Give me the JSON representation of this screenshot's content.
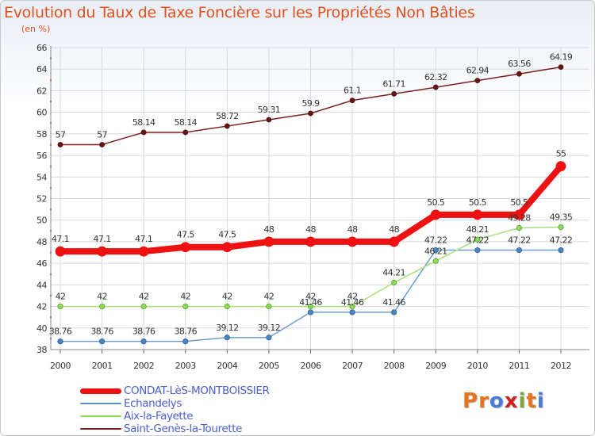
{
  "title": "Evolution du Taux de Taxe Foncière sur les Propriétés Non Bâties",
  "unit_label": "(en %)",
  "logo": {
    "letters": [
      "P",
      "r",
      "o",
      "x",
      "i",
      "t",
      "i"
    ],
    "colors": [
      "#e8731e",
      "#e8731e",
      "#4a7bd8",
      "#cc2222",
      "#7aa83a",
      "#e8731e",
      "#4a7bd8"
    ]
  },
  "chart_data": {
    "type": "line",
    "title": "Evolution du Taux de Taxe Foncière sur les Propriétés Non Bâties",
    "ylabel": "(en %)",
    "xlabel": "",
    "x": [
      "2000",
      "2001",
      "2002",
      "2003",
      "2004",
      "2005",
      "2006",
      "2007",
      "2008",
      "2009",
      "2010",
      "2011",
      "2012"
    ],
    "ylim": [
      38,
      66
    ],
    "yticks": [
      38,
      40,
      42,
      44,
      46,
      48,
      50,
      52,
      54,
      56,
      58,
      60,
      62,
      64,
      66
    ],
    "grid": true,
    "legend_position": "bottom",
    "series": [
      {
        "name": "Saint-Genès-la-Tourette",
        "color": "#7a2020",
        "values": [
          57,
          57,
          58.14,
          58.14,
          58.72,
          59.31,
          59.9,
          61.1,
          61.71,
          62.32,
          62.94,
          63.56,
          64.19
        ],
        "labels": [
          "57",
          "57",
          "58.14",
          "58.14",
          "58.72",
          "59.31",
          "59.9",
          "61.1",
          "61.71",
          "62.32",
          "62.94",
          "63.56",
          "64.19"
        ]
      },
      {
        "name": "CONDAT-LèS-MONTBOISSIER",
        "color": "#ee1111",
        "values": [
          47.1,
          47.1,
          47.1,
          47.5,
          47.5,
          48,
          48,
          48,
          48,
          50.5,
          50.5,
          50.5,
          55
        ],
        "labels": [
          "47.1",
          "47.1",
          "47.1",
          "47.5",
          "47.5",
          "48",
          "48",
          "48",
          "48",
          "50.5",
          "50.5",
          "50.5",
          "55"
        ]
      },
      {
        "name": "Aix-la-Fayette",
        "color": "#8fd95a",
        "values": [
          42,
          42,
          42,
          42,
          42,
          42,
          42,
          42,
          44.21,
          46.21,
          48.21,
          49.28,
          49.35
        ],
        "labels": [
          "42",
          "42",
          "42",
          "42",
          "42",
          "42",
          "42",
          "42",
          "44.21",
          "46.21",
          "48.21",
          "49.28",
          "49.35"
        ]
      },
      {
        "name": "Echandelys",
        "color": "#5b8ec2",
        "values": [
          38.76,
          38.76,
          38.76,
          38.76,
          39.12,
          39.12,
          41.46,
          41.46,
          41.46,
          47.22,
          47.22,
          47.22,
          47.22
        ],
        "labels": [
          "38.76",
          "38.76",
          "38.76",
          "38.76",
          "39.12",
          "39.12",
          "41.46",
          "41.46",
          "41.46",
          "47.22",
          "47.22",
          "47.22",
          "47.22"
        ]
      }
    ],
    "legend": [
      {
        "name": "CONDAT-LèS-MONTBOISSIER",
        "color": "#ee1111"
      },
      {
        "name": "Echandelys",
        "color": "#5b8ec2"
      },
      {
        "name": "Aix-la-Fayette",
        "color": "#8fd95a"
      },
      {
        "name": "Saint-Genès-la-Tourette",
        "color": "#7a2020"
      }
    ]
  }
}
